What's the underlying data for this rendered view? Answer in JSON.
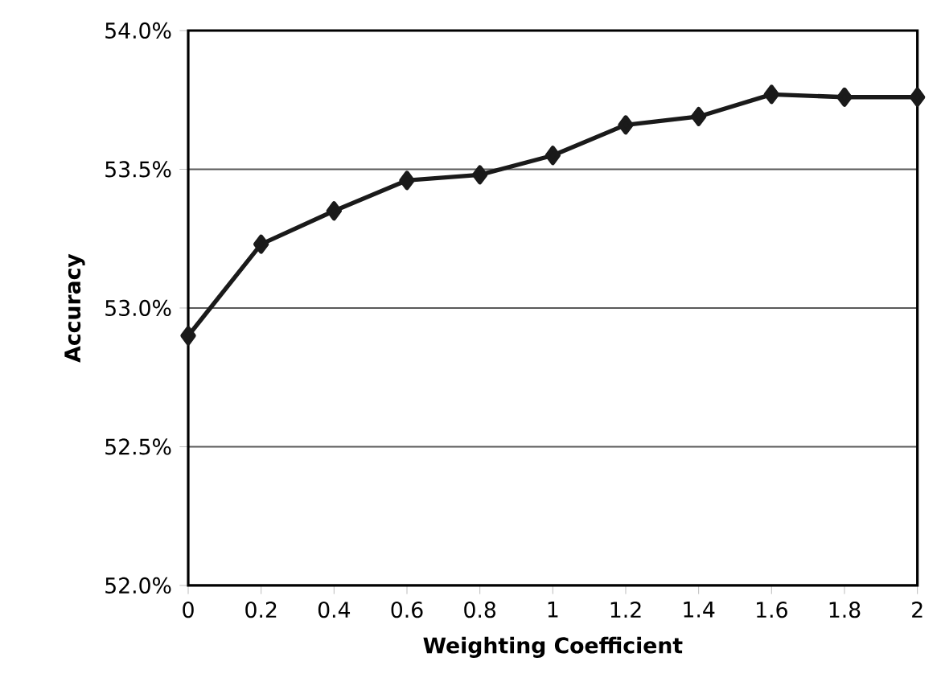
{
  "chart_data": {
    "type": "line",
    "xlabel": "Weighting Coefficient",
    "ylabel": "Accuracy",
    "x": [
      0,
      0.2,
      0.4,
      0.6,
      0.8,
      1,
      1.2,
      1.4,
      1.6,
      1.8,
      2
    ],
    "series": [
      {
        "color": "#1a1a1a",
        "values": [
          52.9,
          53.23,
          53.35,
          53.46,
          53.48,
          53.55,
          53.66,
          53.69,
          53.77,
          53.76,
          53.76
        ]
      }
    ],
    "xlim": [
      0,
      2
    ],
    "xticks": [
      0,
      0.2,
      0.4,
      0.6,
      0.8,
      1,
      1.2,
      1.4,
      1.6,
      1.8,
      2
    ],
    "ylim": [
      52,
      54
    ],
    "yticks": [
      {
        "value": 52,
        "label": "52.0%"
      },
      {
        "value": 52.5,
        "label": "52.5%"
      },
      {
        "value": 53,
        "label": "53.0%"
      },
      {
        "value": 53.5,
        "label": "53.5%"
      },
      {
        "value": 54,
        "label": "54.0%"
      }
    ],
    "grid": "y",
    "marker": "diamond",
    "line_style": "solid"
  }
}
